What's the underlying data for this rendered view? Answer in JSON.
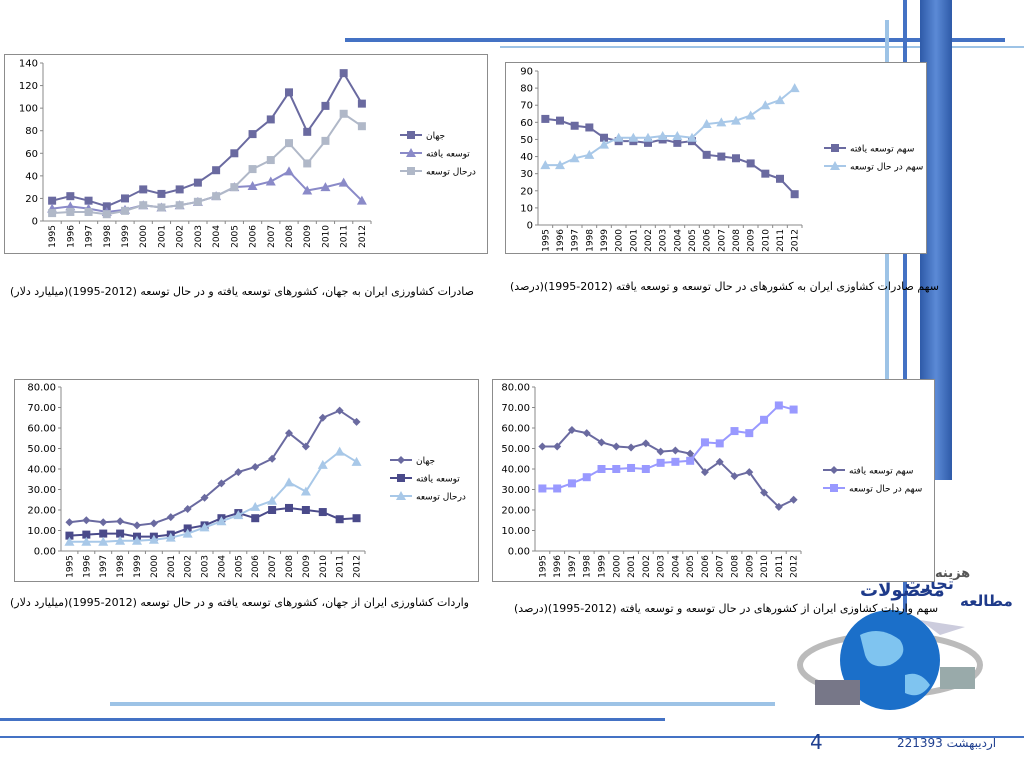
{
  "slide": {
    "page_number": "4",
    "date": "22اردیبهشت 1393",
    "brand_lines": [
      "هزینه",
      "تجارت",
      "محصولات",
      "مطالعه"
    ]
  },
  "colors": {
    "navy": "#1e3a8a",
    "dark_series": "#6a6aa0",
    "light_series": "#a8c8e8",
    "bright_series": "#9999ff",
    "deco_blue": "#4472c4",
    "deco_light": "#9dc3e6"
  },
  "captions": {
    "c1": "صادرات کشاورزی ایران به جهان، کشورهای توسعه یافته و در حال توسعه (2012-1995)(میلیارد دلار)",
    "c2": "سهم صادرات کشاوزی ایران به کشورهای در حال توسعه و توسعه یافته (2012-1995)(درصد)",
    "c3": "واردات کشاورزی ایران از جهان، کشورهای توسعه یافته و در حال توسعه (2012-1995)(میلیارد دلار)",
    "c4": "سهم واردات کشاوزی ایران از کشورهای در حال توسعه و توسعه یافته (2012-1995)(درصد)"
  },
  "chart_data": [
    {
      "type": "line",
      "x": [
        "1995",
        "1996",
        "1997",
        "1998",
        "1999",
        "2000",
        "2001",
        "2002",
        "2003",
        "2004",
        "2005",
        "2006",
        "2007",
        "2008",
        "2009",
        "2010",
        "2011",
        "2012"
      ],
      "yticks": [
        "0",
        "20",
        "40",
        "60",
        "80",
        "100",
        "120",
        "140"
      ],
      "ylim": [
        0,
        140
      ],
      "legend_position": "right",
      "series": [
        {
          "name": "جهان",
          "marker": "square",
          "color": "#6a6aa0",
          "values": [
            18,
            22,
            18,
            13,
            20,
            28,
            24,
            28,
            34,
            45,
            60,
            77,
            90,
            114,
            79,
            102,
            131,
            104
          ]
        },
        {
          "name": "توسعه یافته",
          "marker": "triangle",
          "color": "#8a8ac8",
          "values": [
            11,
            13,
            11,
            8,
            10,
            14,
            12,
            14,
            17,
            22,
            30,
            31,
            35,
            44,
            27,
            30,
            34,
            18
          ]
        },
        {
          "name": "درحال توسعه",
          "marker": "square",
          "color": "#b0b8c8",
          "values": [
            7,
            8,
            8,
            6,
            9,
            14,
            12,
            14,
            17,
            22,
            30,
            46,
            54,
            69,
            51,
            71,
            95,
            84
          ]
        }
      ]
    },
    {
      "type": "line",
      "x": [
        "1995",
        "1996",
        "1997",
        "1998",
        "1999",
        "2000",
        "2001",
        "2002",
        "2003",
        "2004",
        "2005",
        "2006",
        "2007",
        "2008",
        "2009",
        "2010",
        "2011",
        "2012"
      ],
      "yticks": [
        "0",
        "10",
        "20",
        "30",
        "40",
        "50",
        "60",
        "70",
        "80",
        "90"
      ],
      "ylim": [
        0,
        90
      ],
      "legend_position": "right",
      "series": [
        {
          "name": "سهم توسعه یافته",
          "marker": "square",
          "color": "#6a6aa0",
          "values": [
            62,
            61,
            58,
            57,
            51,
            49,
            49,
            48,
            50,
            48,
            49,
            41,
            40,
            39,
            36,
            30,
            27,
            18
          ]
        },
        {
          "name": "سهم در حال توسعه",
          "marker": "triangle",
          "color": "#a8c8e8",
          "values": [
            35,
            35,
            39,
            41,
            47,
            51,
            51,
            51,
            52,
            52,
            51,
            59,
            60,
            61,
            64,
            70,
            73,
            80
          ]
        }
      ]
    },
    {
      "type": "line",
      "x": [
        "1995",
        "1996",
        "1997",
        "1998",
        "1999",
        "2000",
        "2001",
        "2002",
        "2003",
        "2004",
        "2005",
        "2006",
        "2007",
        "2008",
        "2009",
        "2010",
        "2011",
        "2012"
      ],
      "yticks": [
        "0.00",
        "10.00",
        "20.00",
        "30.00",
        "40.00",
        "50.00",
        "60.00",
        "70.00",
        "80.00"
      ],
      "ylim": [
        0,
        80
      ],
      "legend_position": "right",
      "series": [
        {
          "name": "جهان",
          "marker": "diamond",
          "color": "#6a6aa0",
          "values": [
            14,
            15,
            14,
            14.5,
            12.5,
            13.5,
            16.5,
            20.5,
            26,
            33,
            38.5,
            41,
            45,
            57.5,
            51,
            65,
            68.5,
            63
          ]
        },
        {
          "name": "توسعه یافته",
          "marker": "square",
          "color": "#4a4a8a",
          "values": [
            7.5,
            8,
            8.5,
            8.5,
            7,
            7,
            8,
            11,
            12.5,
            16,
            18.5,
            16,
            20,
            21,
            20,
            19,
            15.5,
            16
          ]
        },
        {
          "name": "درحال توسعه",
          "marker": "triangle",
          "color": "#a8c8e8",
          "values": [
            4.5,
            4.5,
            4.5,
            5,
            5,
            5.5,
            6.5,
            8.5,
            11.5,
            14.5,
            17.5,
            21.5,
            24.5,
            33.5,
            29,
            42,
            48.5,
            43.5
          ]
        }
      ]
    },
    {
      "type": "line",
      "x": [
        "1995",
        "1996",
        "1997",
        "1998",
        "1999",
        "2000",
        "2001",
        "2002",
        "2003",
        "2004",
        "2005",
        "2006",
        "2007",
        "2008",
        "2009",
        "2010",
        "2011",
        "2012"
      ],
      "yticks": [
        "0.00",
        "10.00",
        "20.00",
        "30.00",
        "40.00",
        "50.00",
        "60.00",
        "70.00",
        "80.00"
      ],
      "ylim": [
        0,
        80
      ],
      "legend_position": "right",
      "series": [
        {
          "name": "سهم توسعه یافته",
          "marker": "diamond",
          "color": "#6a6aa0",
          "values": [
            51,
            51,
            59,
            57.5,
            53,
            51,
            50.5,
            52.5,
            48.5,
            49,
            47.5,
            38.5,
            43.5,
            36.5,
            38.5,
            28.5,
            21.5,
            25
          ]
        },
        {
          "name": "سهم در حال توسعه",
          "marker": "square",
          "color": "#9999ff",
          "values": [
            30.5,
            30.5,
            33,
            36,
            40,
            40,
            40.5,
            40,
            43,
            43.5,
            44,
            53,
            52.5,
            58.5,
            57.5,
            64,
            71,
            69
          ]
        }
      ]
    }
  ]
}
